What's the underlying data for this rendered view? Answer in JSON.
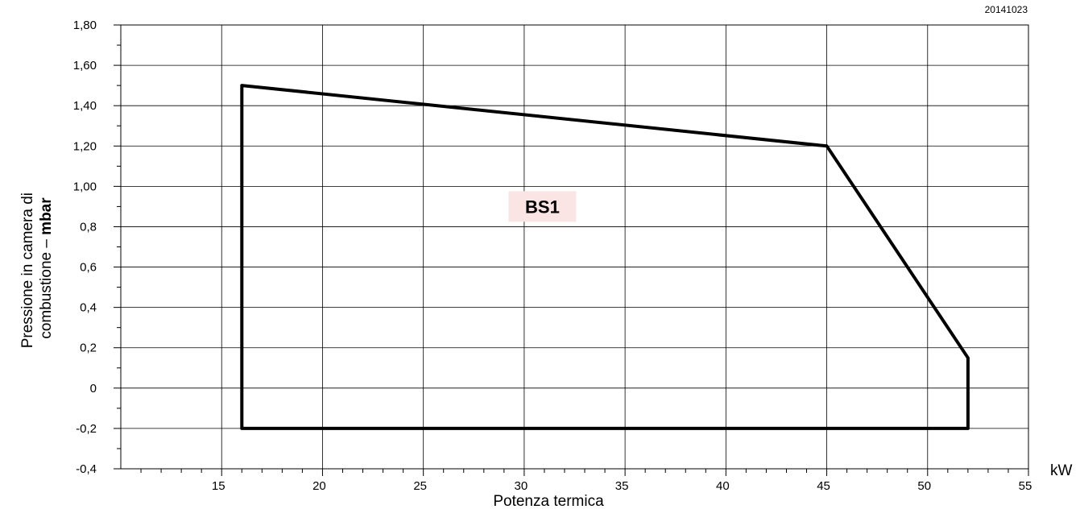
{
  "chart_data": {
    "type": "line",
    "code": "20141023",
    "xlabel": "Potenza termica",
    "x_unit": "kW",
    "ylabel_line1": "Pressione in camera di",
    "ylabel_line2_prefix": "combustione – ",
    "ylabel_line2_unit": "mbar",
    "xlim": [
      10,
      55
    ],
    "ylim": [
      -0.4,
      1.8
    ],
    "x_ticks": [
      {
        "value": 15,
        "label": "15"
      },
      {
        "value": 20,
        "label": "20"
      },
      {
        "value": 25,
        "label": "25"
      },
      {
        "value": 30,
        "label": "30"
      },
      {
        "value": 35,
        "label": "35"
      },
      {
        "value": 40,
        "label": "40"
      },
      {
        "value": 45,
        "label": "45"
      },
      {
        "value": 50,
        "label": "50"
      },
      {
        "value": 55,
        "label": "55"
      }
    ],
    "y_ticks": [
      {
        "value": -0.4,
        "label": "-0,4"
      },
      {
        "value": -0.2,
        "label": "-0,2"
      },
      {
        "value": 0,
        "label": "0"
      },
      {
        "value": 0.2,
        "label": "0,2"
      },
      {
        "value": 0.4,
        "label": "0,4"
      },
      {
        "value": 0.6,
        "label": "0,6"
      },
      {
        "value": 0.8,
        "label": "0,8"
      },
      {
        "value": 1.0,
        "label": "1,00"
      },
      {
        "value": 1.2,
        "label": "1,20"
      },
      {
        "value": 1.4,
        "label": "1,40"
      },
      {
        "value": 1.6,
        "label": "1,60"
      },
      {
        "value": 1.8,
        "label": "1,80"
      }
    ],
    "grid": true,
    "series": [
      {
        "name": "BS1",
        "closed": true,
        "color": "#000000",
        "points": [
          {
            "x": 16,
            "y": 1.5
          },
          {
            "x": 45,
            "y": 1.2
          },
          {
            "x": 52,
            "y": 0.15
          },
          {
            "x": 52,
            "y": -0.2
          },
          {
            "x": 16,
            "y": -0.2
          }
        ]
      }
    ],
    "annotations": [
      {
        "text": "BS1",
        "x": 30.9,
        "y": 0.9,
        "background": "#fbe4e4"
      }
    ]
  }
}
